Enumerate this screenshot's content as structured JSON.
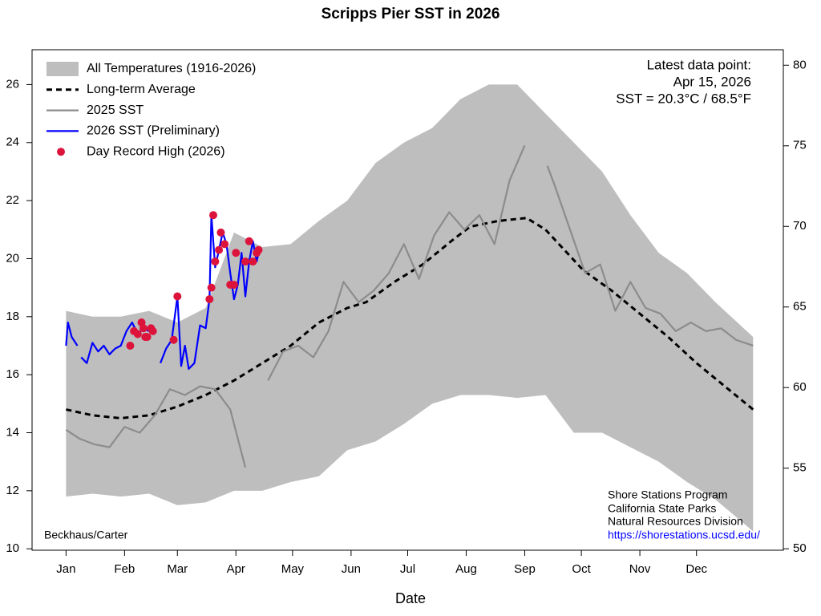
{
  "chart_data": {
    "type": "line",
    "title": "Scripps Pier SST in 2026",
    "xlabel": "Date",
    "xlim": [
      -17,
      381
    ],
    "xticks": [
      {
        "value": 1,
        "label": "Jan"
      },
      {
        "value": 32,
        "label": "Feb"
      },
      {
        "value": 60,
        "label": "Mar"
      },
      {
        "value": 91,
        "label": "Apr"
      },
      {
        "value": 121,
        "label": "May"
      },
      {
        "value": 152,
        "label": "Jun"
      },
      {
        "value": 182,
        "label": "Jul"
      },
      {
        "value": 213,
        "label": "Aug"
      },
      {
        "value": 244,
        "label": "Sep"
      },
      {
        "value": 274,
        "label": "Oct"
      },
      {
        "value": 305,
        "label": "Nov"
      },
      {
        "value": 335,
        "label": "Dec"
      }
    ],
    "ylim": [
      9.95,
      27.2
    ],
    "yticks": [
      10,
      12,
      14,
      16,
      18,
      20,
      22,
      24,
      26
    ],
    "y2lim": [
      49.91,
      80.96
    ],
    "y2ticks": [
      50,
      55,
      60,
      65,
      70,
      75,
      80
    ],
    "grid": false,
    "legend": "top-left",
    "series": [
      {
        "name": "All Temperatures (1916-2026)",
        "kind": "band",
        "color": "#bebebe",
        "x": [
          1,
          15,
          30,
          45,
          60,
          75,
          90,
          105,
          120,
          135,
          150,
          165,
          180,
          195,
          210,
          225,
          240,
          255,
          270,
          285,
          300,
          315,
          330,
          345,
          365
        ],
        "upper": [
          18.2,
          18.0,
          18.0,
          18.2,
          17.8,
          18.3,
          20.9,
          20.4,
          20.5,
          21.3,
          22.0,
          23.3,
          24.0,
          24.5,
          25.5,
          26.0,
          26.0,
          25.0,
          24.0,
          23.0,
          21.5,
          20.2,
          19.5,
          18.5,
          17.3
        ],
        "lower": [
          11.8,
          11.9,
          11.8,
          11.9,
          11.5,
          11.6,
          12.0,
          12.0,
          12.3,
          12.5,
          13.4,
          13.7,
          14.3,
          15.0,
          15.3,
          15.3,
          15.2,
          15.3,
          14.0,
          14.0,
          13.5,
          13.0,
          12.3,
          11.7,
          10.6
        ]
      },
      {
        "name": "Long-term Average",
        "kind": "line",
        "dash": true,
        "color": "#000000",
        "x": [
          1,
          15,
          30,
          45,
          60,
          75,
          90,
          105,
          120,
          135,
          150,
          160,
          175,
          190,
          205,
          215,
          230,
          245,
          255,
          265,
          275,
          290,
          305,
          320,
          335,
          350,
          365
        ],
        "values": [
          14.8,
          14.6,
          14.5,
          14.6,
          14.9,
          15.3,
          15.8,
          16.4,
          17.0,
          17.8,
          18.3,
          18.5,
          19.2,
          19.8,
          20.6,
          21.1,
          21.3,
          21.4,
          21.0,
          20.3,
          19.6,
          18.9,
          18.1,
          17.3,
          16.4,
          15.6,
          14.8
        ]
      },
      {
        "name": "2025 SST",
        "kind": "line",
        "color": "#8c8c8c",
        "x": [
          1,
          8,
          16,
          24,
          32,
          40,
          48,
          56,
          64,
          72,
          80,
          88,
          96,
          100,
          108,
          116,
          124,
          132,
          140,
          148,
          156,
          164,
          172,
          180,
          188,
          196,
          204,
          212,
          220,
          228,
          236,
          244,
          252,
          256,
          260,
          268,
          276,
          284,
          292,
          300,
          308,
          316,
          324,
          332,
          340,
          348,
          356,
          365
        ],
        "values": [
          14.1,
          13.8,
          13.6,
          13.5,
          14.2,
          14.0,
          14.6,
          15.5,
          15.3,
          15.6,
          15.5,
          14.8,
          12.8,
          null,
          15.8,
          16.8,
          17.0,
          16.6,
          17.5,
          19.2,
          18.5,
          18.9,
          19.5,
          20.5,
          19.3,
          20.8,
          21.6,
          21.0,
          21.5,
          20.5,
          22.7,
          23.9,
          null,
          23.2,
          22.5,
          21.0,
          19.5,
          19.8,
          18.2,
          19.2,
          18.3,
          18.1,
          17.5,
          17.8,
          17.5,
          17.6,
          17.2,
          17.0
        ]
      },
      {
        "name": "2026 SST (Preliminary)",
        "kind": "line",
        "color": "#0000ff",
        "x": [
          1,
          2,
          4,
          7,
          8,
          9,
          12,
          15,
          18,
          21,
          24,
          27,
          30,
          33,
          36,
          39,
          42,
          45,
          48,
          51,
          54,
          57,
          60,
          62,
          64,
          66,
          69,
          72,
          75,
          77,
          78,
          80,
          82,
          84,
          86,
          88,
          90,
          92,
          94,
          96,
          98,
          100,
          102,
          103,
          104
        ],
        "values": [
          17.0,
          17.8,
          17.3,
          17.0,
          null,
          16.6,
          16.4,
          17.1,
          16.8,
          17.0,
          16.7,
          16.9,
          17.0,
          17.5,
          17.8,
          17.4,
          17.6,
          17.5,
          null,
          16.4,
          16.9,
          17.2,
          18.7,
          16.3,
          17.0,
          16.2,
          16.4,
          17.7,
          17.6,
          18.6,
          21.5,
          19.7,
          20.3,
          20.9,
          20.5,
          19.5,
          18.6,
          19.1,
          20.2,
          18.7,
          19.9,
          20.6,
          19.9,
          20.2,
          20.3
        ]
      },
      {
        "name": "Day Record High (2026)",
        "kind": "points",
        "color": "#dc143c",
        "x": [
          35,
          37,
          39,
          41,
          42,
          43,
          44,
          46,
          47,
          58,
          60,
          77,
          78,
          79,
          80,
          82,
          83,
          85,
          88,
          90,
          91,
          96,
          98,
          100,
          102,
          103
        ],
        "values": [
          17.0,
          17.5,
          17.4,
          17.8,
          17.6,
          17.3,
          17.3,
          17.6,
          17.5,
          17.2,
          18.7,
          18.6,
          19.0,
          21.5,
          19.9,
          20.3,
          20.9,
          20.5,
          19.1,
          19.1,
          20.2,
          19.9,
          20.6,
          19.9,
          20.2,
          20.3
        ]
      }
    ],
    "annotation": [
      "Latest data point:",
      "Apr 15, 2026",
      "SST = 20.3°C / 68.5°F"
    ],
    "credit": "Beckhaus/Carter",
    "source": [
      "Shore Stations Program",
      "California State Parks",
      "Natural Resources Division"
    ],
    "url": "https://shorestations.ucsd.edu/"
  }
}
